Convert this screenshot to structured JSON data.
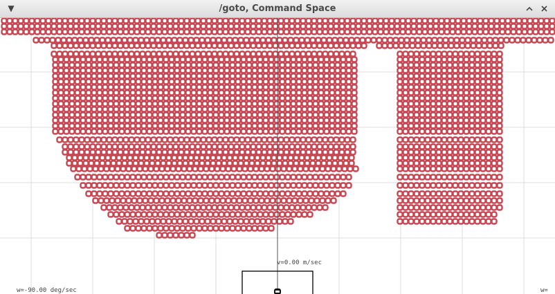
{
  "window": {
    "title": "/goto, Command Space",
    "menu_icon": "triangle-down-icon",
    "minimize_icon": "chevron-up-icon",
    "close_icon": "close-icon"
  },
  "canvas": {
    "velocity_label": "v=0.00 m/sec",
    "angular_left_label": "w=-90.00 deg/sec",
    "angular_right_label": "w=",
    "colors": {
      "obstacle": "#c64550",
      "grid": "#dcdcdc",
      "heading_line": "#555555",
      "robot": "#111111"
    }
  }
}
